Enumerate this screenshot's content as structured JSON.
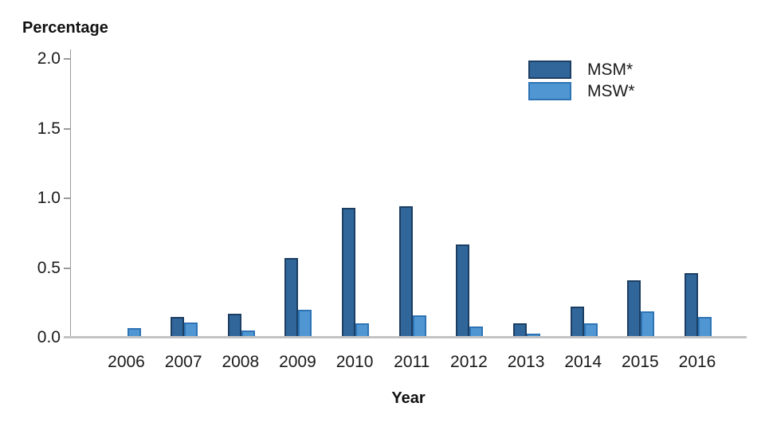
{
  "chart_data": {
    "type": "bar",
    "title": "",
    "ylabel": "Percentage",
    "xlabel": "Year",
    "categories": [
      "2006",
      "2007",
      "2008",
      "2009",
      "2010",
      "2011",
      "2012",
      "2013",
      "2014",
      "2015",
      "2016"
    ],
    "series": [
      {
        "name": "MSM*",
        "key": "msm",
        "fill_color": "#31669B",
        "border_color": "#1C3E63",
        "values": [
          0,
          0.15,
          0.17,
          0.57,
          0.93,
          0.94,
          0.67,
          0.1,
          0.22,
          0.41,
          0.46
        ]
      },
      {
        "name": "MSW*",
        "key": "msw",
        "fill_color": "#4F96D2",
        "border_color": "#2E74B5",
        "values": [
          0.07,
          0.11,
          0.05,
          0.2,
          0.1,
          0.16,
          0.08,
          0.03,
          0.1,
          0.19,
          0.15
        ]
      }
    ],
    "ylim": [
      0,
      2.0
    ],
    "yticks": [
      "0.0",
      "0.5",
      "1.0",
      "1.5",
      "2.0"
    ],
    "grid": false,
    "legend_position": "top-right",
    "axis_color": "#9a9a9a",
    "baseline_color": "#c3c3c3"
  }
}
